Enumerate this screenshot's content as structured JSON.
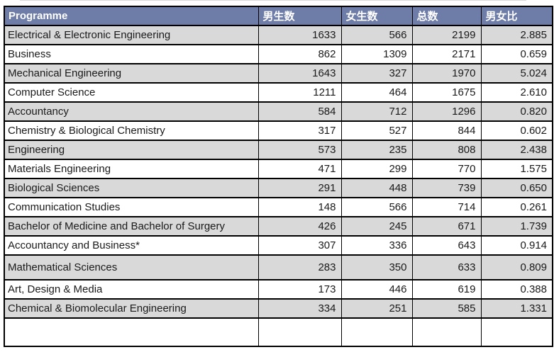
{
  "table": {
    "columns": [
      {
        "key": "programme",
        "label": "Programme"
      },
      {
        "key": "male",
        "label": "男生数"
      },
      {
        "key": "female",
        "label": "女生数"
      },
      {
        "key": "total",
        "label": "总数"
      },
      {
        "key": "ratio",
        "label": "男女比"
      }
    ],
    "rows": [
      {
        "programme": "Electrical & Electronic Engineering",
        "male": 1633,
        "female": 566,
        "total": 2199,
        "ratio": "2.885"
      },
      {
        "programme": "Business",
        "male": 862,
        "female": 1309,
        "total": 2171,
        "ratio": "0.659"
      },
      {
        "programme": "Mechanical Engineering",
        "male": 1643,
        "female": 327,
        "total": 1970,
        "ratio": "5.024"
      },
      {
        "programme": "Computer Science",
        "male": 1211,
        "female": 464,
        "total": 1675,
        "ratio": "2.610"
      },
      {
        "programme": "Accountancy",
        "male": 584,
        "female": 712,
        "total": 1296,
        "ratio": "0.820"
      },
      {
        "programme": "Chemistry & Biological Chemistry",
        "male": 317,
        "female": 527,
        "total": 844,
        "ratio": "0.602"
      },
      {
        "programme": "Engineering",
        "male": 573,
        "female": 235,
        "total": 808,
        "ratio": "2.438"
      },
      {
        "programme": "Materials Engineering",
        "male": 471,
        "female": 299,
        "total": 770,
        "ratio": "1.575"
      },
      {
        "programme": "Biological Sciences",
        "male": 291,
        "female": 448,
        "total": 739,
        "ratio": "0.650"
      },
      {
        "programme": "Communication Studies",
        "male": 148,
        "female": 566,
        "total": 714,
        "ratio": "0.261"
      },
      {
        "programme": "Bachelor of Medicine and Bachelor of Surgery",
        "male": 426,
        "female": 245,
        "total": 671,
        "ratio": "1.739"
      },
      {
        "programme": "Accountancy and Business*",
        "male": 307,
        "female": 336,
        "total": 643,
        "ratio": "0.914"
      },
      {
        "programme": "Mathematical Sciences",
        "male": 283,
        "female": 350,
        "total": 633,
        "ratio": "0.809"
      },
      {
        "programme": "Art, Design & Media",
        "male": 173,
        "female": 446,
        "total": 619,
        "ratio": "0.388"
      },
      {
        "programme": "Chemical & Biomolecular Engineering",
        "male": 334,
        "female": 251,
        "total": 585,
        "ratio": "1.331"
      }
    ]
  },
  "colors": {
    "header_bg": "#6E7CA8",
    "header_text": "#FFFFFF",
    "banded_row_bg": "#D9D9D9",
    "plain_row_bg": "#FFFFFF",
    "border": "#000000"
  }
}
